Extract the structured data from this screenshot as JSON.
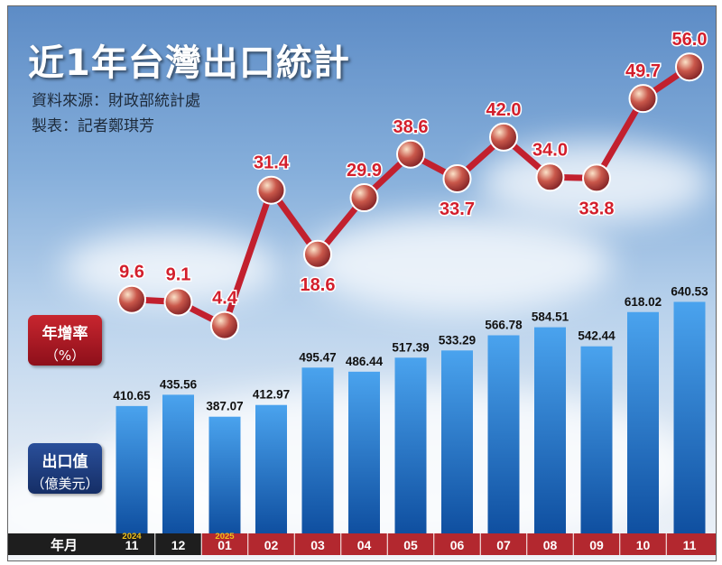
{
  "title": "近1年台灣出口統計",
  "source": "資料來源：財政部統計處",
  "author": "製表：記者鄭琪芳",
  "legend": {
    "rate_line1": "年增率",
    "rate_line2": "（%）",
    "export_line1": "出口值",
    "export_line2": "（億美元）",
    "axis_label": "年月"
  },
  "colors": {
    "bar_top": "#4aa3ee",
    "bar_bottom": "#0f4fa0",
    "line": "#c2202e",
    "marker": "#c9574a",
    "label_red": "#d31f2c",
    "axis_dark": "#1e1e1e",
    "axis_red": "#b3282f",
    "year_yellow": "#f0c21a"
  },
  "chart_data": {
    "type": "bar+line",
    "title": "近1年台灣出口統計",
    "categories": [
      "11",
      "12",
      "01",
      "02",
      "03",
      "04",
      "05",
      "06",
      "07",
      "08",
      "09",
      "10",
      "11"
    ],
    "year_labels": [
      {
        "index": 0,
        "text": "2024"
      },
      {
        "index": 2,
        "text": "2025"
      }
    ],
    "series": [
      {
        "name": "出口值（億美元）",
        "type": "bar",
        "values": [
          410.65,
          435.56,
          387.07,
          412.97,
          495.47,
          486.44,
          517.39,
          533.29,
          566.78,
          584.51,
          542.44,
          618.02,
          640.53
        ],
        "labels": [
          "410.65",
          "435.56",
          "387.07",
          "412.97",
          "495.47",
          "486.44",
          "517.39",
          "533.29",
          "566.78",
          "584.51",
          "542.44",
          "618.02",
          "640.53"
        ]
      },
      {
        "name": "年增率（%）",
        "type": "line",
        "values": [
          9.6,
          9.1,
          4.4,
          31.4,
          18.6,
          29.9,
          38.6,
          33.7,
          42.0,
          34.0,
          33.8,
          49.7,
          56.0
        ],
        "labels": [
          "9.6",
          "9.1",
          "4.4",
          "31.4",
          "18.6",
          "29.9",
          "38.6",
          "33.7",
          "42.0",
          "34.0",
          "33.8",
          "49.7",
          "56.0"
        ]
      }
    ],
    "xlabel": "年月",
    "ylabel_bar": "出口值（億美元）",
    "ylabel_line": "年增率（%）"
  }
}
